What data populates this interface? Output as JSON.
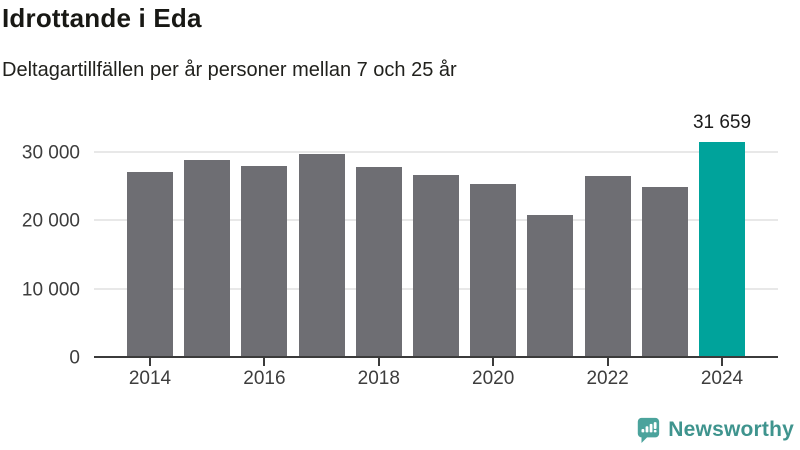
{
  "header": {
    "title": "Idrottande i Eda",
    "subtitle": "Deltagartillfällen per år personer mellan 7 och 25 år"
  },
  "chart_data": {
    "type": "bar",
    "title": "Idrottande i Eda",
    "subtitle": "Deltagartillfällen per år personer mellan 7 och 25 år",
    "categories": [
      2014,
      2015,
      2016,
      2017,
      2018,
      2019,
      2020,
      2021,
      2022,
      2023,
      2024
    ],
    "values": [
      27200,
      29000,
      28100,
      29900,
      27900,
      26800,
      25400,
      21000,
      26600,
      25000,
      31659
    ],
    "highlight_index": 10,
    "highlight_label": "31 659",
    "xlabel": "",
    "ylabel": "",
    "ylim": [
      0,
      33000
    ],
    "yticks": [
      {
        "value": 0,
        "label": "0"
      },
      {
        "value": 10000,
        "label": "10 000"
      },
      {
        "value": 20000,
        "label": "20 000"
      },
      {
        "value": 30000,
        "label": "30 000"
      }
    ],
    "xticks": [
      2014,
      2016,
      2018,
      2020,
      2022,
      2024
    ],
    "grid": "horizontal",
    "legend": "none",
    "bar_color": "#6e6e73",
    "highlight_color": "#00a39b"
  },
  "footer": {
    "brand": "Newsworthy",
    "logo_icon": "bar-chart-speech-bubble-icon",
    "brand_text_color": "#3f948e",
    "brand_icon_color": "#4ba39c"
  },
  "colors": {
    "background": "#ffffff",
    "gridline": "#e8e8e8",
    "axis_line": "#3b3b3b",
    "axis_text": "#3d3d3d",
    "title_text": "#181814",
    "value_label_text": "#1b1b1b"
  }
}
